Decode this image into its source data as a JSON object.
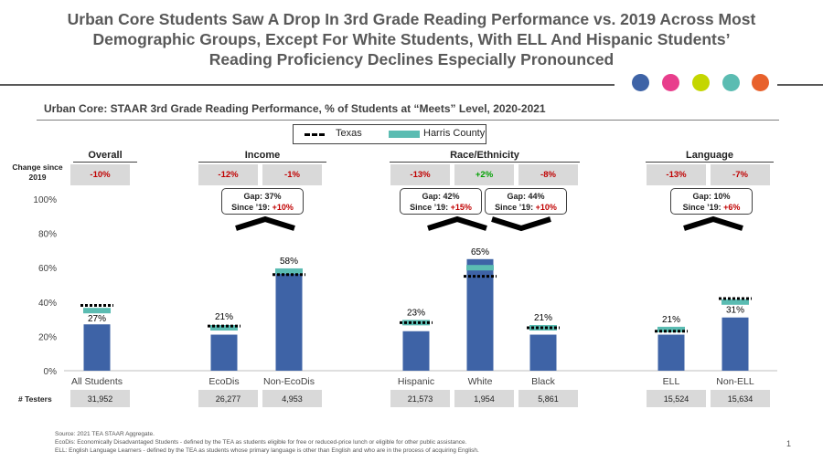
{
  "title_lines": [
    "Urban Core Students Saw A Drop In 3rd Grade Reading Performance vs. 2019 Across Most",
    "Demographic Groups, Except For White Students, With ELL And Hispanic Students’",
    "Reading Proficiency Declines Especially Pronounced"
  ],
  "dot_colors": [
    "#3e63a6",
    "#e83e8c",
    "#c4d600",
    "#5bbcb2",
    "#e8612c"
  ],
  "subtitle": "Urban Core: STAAR 3rd Grade Reading Performance, % of Students at “Meets” Level, 2020-2021",
  "legend": {
    "texas": "Texas",
    "harris": "Harris County"
  },
  "group_labels": {
    "overall": "Overall",
    "income": "Income",
    "race": "Race/Ethnicity",
    "language": "Language"
  },
  "change_label": "Change since 2019",
  "changes": [
    "-10%",
    "-12%",
    "-1%",
    "-13%",
    "+2%",
    "-8%",
    "-13%",
    "-7%"
  ],
  "gaps": [
    {
      "line1": "Gap: 37%",
      "line2_prefix": "Since ’19: ",
      "line2_value": "+10%"
    },
    {
      "line1": "Gap: 42%",
      "line2_prefix": "Since ’19: ",
      "line2_value": "+15%"
    },
    {
      "line1": "Gap: 44%",
      "line2_prefix": "Since ’19: ",
      "line2_value": "+10%"
    },
    {
      "line1": "Gap: 10%",
      "line2_prefix": "Since ’19: ",
      "line2_value": "+6%"
    }
  ],
  "testers_label": "# Testers",
  "testers": [
    "31,952",
    "26,277",
    "4,953",
    "21,573",
    "1,954",
    "5,861",
    "15,524",
    "15,634"
  ],
  "footnotes": [
    "Source: 2021 TEA STAAR Aggregate.",
    "EcoDis: Economically Disadvantaged Students - defined by the TEA as students eligible for free or reduced-price lunch or eligible for other public assistance.",
    "ELL: English Language Learners - defined by the TEA as students whose primary language is other than English and who are in the process of acquiring English."
  ],
  "page_number": "1",
  "chart_data": {
    "type": "bar",
    "title": "Urban Core: STAAR 3rd Grade Reading Performance, % of Students at “Meets” Level, 2020-2021",
    "categories": [
      "All Students",
      "EcoDis",
      "Non-EcoDis",
      "Hispanic",
      "White",
      "Black",
      "ELL",
      "Non-ELL"
    ],
    "values": [
      27,
      21,
      58,
      23,
      65,
      21,
      21,
      31
    ],
    "value_labels": [
      "27%",
      "21%",
      "58%",
      "23%",
      "65%",
      "21%",
      "21%",
      "31%"
    ],
    "texas": [
      38,
      26,
      56,
      28,
      55,
      25,
      23,
      42
    ],
    "harris_county": [
      35,
      25,
      58,
      28,
      60,
      25,
      24,
      40
    ],
    "ylim": [
      0,
      100
    ],
    "yticks": [
      "0%",
      "20%",
      "40%",
      "60%",
      "80%",
      "100%"
    ],
    "bar_color": "#3e63a6",
    "harris_color": "#5bbcb2",
    "texas_color": "#000000"
  }
}
